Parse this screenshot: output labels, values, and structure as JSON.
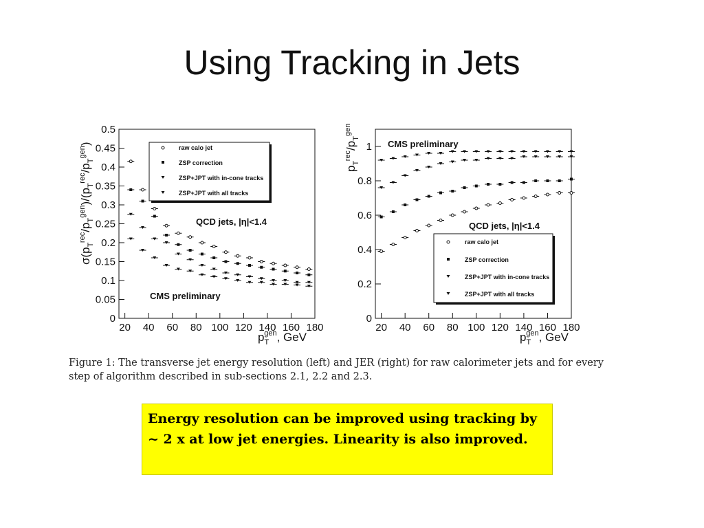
{
  "slide": {
    "title": "Using Tracking in Jets",
    "caption": "Figure 1: The transverse jet energy resolution (left) and JER (right) for raw calorimeter jets and for every step of algorithm described in sub-sections 2.1, 2.2 and 2.3.",
    "callout": "Energy resolution can be improved using tracking by ~ 2 x at low jet energies. Linearity is also improved.",
    "callout_color": "#ffff00"
  },
  "chart_data": [
    {
      "type": "scatter",
      "title": "",
      "xlabel": "p_T^gen, GeV",
      "ylabel": "σ(p_T^rec/p_T^gen)/(p_T^rec/p_T^gen)",
      "xlim": [
        15,
        180
      ],
      "ylim": [
        0,
        0.5
      ],
      "xticks": [
        20,
        40,
        60,
        80,
        100,
        120,
        140,
        160,
        180
      ],
      "xtick_labels": [
        "20",
        "40",
        "60",
        "80",
        "100",
        "120",
        "140",
        "160",
        "180"
      ],
      "yticks": [
        0,
        0.05,
        0.1,
        0.15,
        0.2,
        0.25,
        0.3,
        0.35,
        0.4,
        0.45,
        0.5
      ],
      "ytick_labels": [
        "0",
        "0.05",
        "0.1",
        "0.15",
        "0.2",
        "0.25",
        "0.3",
        "0.35",
        "0.4",
        "0.45",
        "0.5"
      ],
      "annotations": [
        "QCD jets, |η|<1.4",
        "CMS preliminary"
      ],
      "legend_position": "top-right",
      "series": [
        {
          "name": "raw calo jet",
          "marker": "circle-open",
          "x": [
            25,
            35,
            45,
            55,
            65,
            75,
            85,
            95,
            105,
            115,
            125,
            135,
            145,
            155,
            165,
            175
          ],
          "y": [
            0.415,
            0.34,
            0.29,
            0.245,
            0.225,
            0.215,
            0.2,
            0.19,
            0.175,
            0.165,
            0.16,
            0.15,
            0.145,
            0.14,
            0.135,
            0.13
          ]
        },
        {
          "name": "ZSP correction",
          "marker": "square-filled",
          "x": [
            25,
            35,
            45,
            55,
            65,
            75,
            85,
            95,
            105,
            115,
            125,
            135,
            145,
            155,
            165,
            175
          ],
          "y": [
            0.34,
            0.31,
            0.27,
            0.22,
            0.195,
            0.18,
            0.17,
            0.16,
            0.15,
            0.145,
            0.14,
            0.135,
            0.13,
            0.125,
            0.12,
            0.115
          ]
        },
        {
          "name": "ZSP+JPT with in-cone tracks",
          "marker": "triangle-down",
          "x": [
            25,
            35,
            45,
            55,
            65,
            75,
            85,
            95,
            105,
            115,
            125,
            135,
            145,
            155,
            165,
            175
          ],
          "y": [
            0.275,
            0.24,
            0.21,
            0.2,
            0.17,
            0.155,
            0.14,
            0.13,
            0.12,
            0.115,
            0.11,
            0.105,
            0.1,
            0.1,
            0.095,
            0.095
          ]
        },
        {
          "name": "ZSP+JPT with all tracks",
          "marker": "triangle-down",
          "x": [
            25,
            35,
            45,
            55,
            65,
            75,
            85,
            95,
            105,
            115,
            125,
            135,
            145,
            155,
            165,
            175
          ],
          "y": [
            0.21,
            0.18,
            0.16,
            0.14,
            0.13,
            0.125,
            0.115,
            0.11,
            0.105,
            0.1,
            0.095,
            0.095,
            0.09,
            0.09,
            0.088,
            0.085
          ]
        }
      ],
      "colors": {
        "marker": "#111111"
      }
    },
    {
      "type": "scatter",
      "title": "",
      "xlabel": "p_T^gen, GeV",
      "ylabel": "p_T^rec/p_T^gen",
      "xlim": [
        15,
        180
      ],
      "ylim": [
        0,
        1.1
      ],
      "xticks": [
        20,
        40,
        60,
        80,
        100,
        120,
        140,
        160,
        180
      ],
      "xtick_labels": [
        "20",
        "40",
        "60",
        "80",
        "100",
        "120",
        "140",
        "160",
        "180"
      ],
      "yticks": [
        0,
        0.2,
        0.4,
        0.6,
        0.8,
        1
      ],
      "ytick_labels": [
        "0",
        "0.2",
        "0.4",
        "0.6",
        "0.8",
        "1"
      ],
      "annotations": [
        "CMS preliminary",
        "QCD jets, |η|<1.4"
      ],
      "legend_position": "bottom-right",
      "series": [
        {
          "name": "raw calo jet",
          "marker": "circle-open",
          "x": [
            20,
            30,
            40,
            50,
            60,
            70,
            80,
            90,
            100,
            110,
            120,
            130,
            140,
            150,
            160,
            170,
            180
          ],
          "y": [
            0.39,
            0.43,
            0.47,
            0.51,
            0.54,
            0.57,
            0.6,
            0.62,
            0.64,
            0.66,
            0.67,
            0.69,
            0.7,
            0.71,
            0.72,
            0.73,
            0.73
          ]
        },
        {
          "name": "ZSP correction",
          "marker": "square-filled",
          "x": [
            20,
            30,
            40,
            50,
            60,
            70,
            80,
            90,
            100,
            110,
            120,
            130,
            140,
            150,
            160,
            170,
            180
          ],
          "y": [
            0.59,
            0.62,
            0.66,
            0.69,
            0.71,
            0.73,
            0.74,
            0.76,
            0.77,
            0.78,
            0.78,
            0.79,
            0.79,
            0.8,
            0.8,
            0.8,
            0.81
          ]
        },
        {
          "name": "ZSP+JPT with in-cone tracks",
          "marker": "triangle-down",
          "x": [
            20,
            30,
            40,
            50,
            60,
            70,
            80,
            90,
            100,
            110,
            120,
            130,
            140,
            150,
            160,
            170,
            180
          ],
          "y": [
            0.76,
            0.79,
            0.83,
            0.86,
            0.88,
            0.9,
            0.91,
            0.92,
            0.92,
            0.93,
            0.93,
            0.93,
            0.94,
            0.94,
            0.94,
            0.94,
            0.94
          ]
        },
        {
          "name": "ZSP+JPT with all tracks",
          "marker": "triangle-down",
          "x": [
            20,
            30,
            40,
            50,
            60,
            70,
            80,
            90,
            100,
            110,
            120,
            130,
            140,
            150,
            160,
            170,
            180
          ],
          "y": [
            0.92,
            0.93,
            0.94,
            0.95,
            0.96,
            0.96,
            0.97,
            0.97,
            0.97,
            0.97,
            0.97,
            0.97,
            0.97,
            0.97,
            0.97,
            0.97,
            0.97
          ]
        }
      ],
      "colors": {
        "marker": "#111111"
      }
    }
  ]
}
